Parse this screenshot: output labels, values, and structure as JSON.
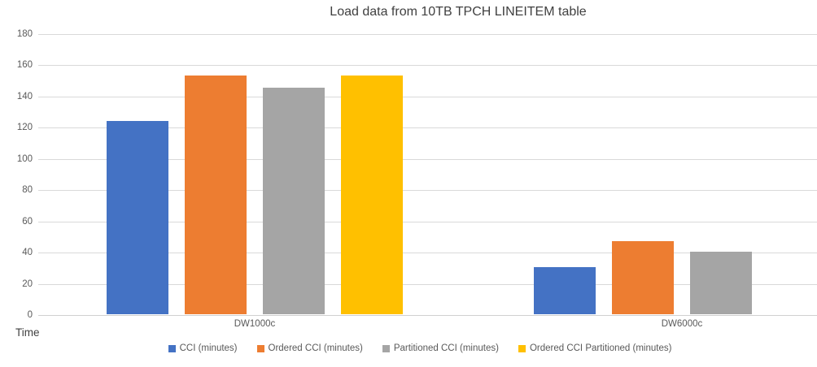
{
  "chart_data": {
    "type": "bar",
    "title": "Load data from 10TB TPCH LINEITEM table",
    "categories": [
      "DW1000c",
      "DW6000c"
    ],
    "series": [
      {
        "name": "CCI (minutes)",
        "color": "#4472c4",
        "values": [
          124,
          30
        ]
      },
      {
        "name": "Ordered CCI (minutes)",
        "color": "#ed7d31",
        "values": [
          153,
          47
        ]
      },
      {
        "name": "Partitioned CCI (minutes)",
        "color": "#a5a5a5",
        "values": [
          145,
          40
        ]
      },
      {
        "name": "Ordered CCI Partitioned (minutes)",
        "color": "#ffc000",
        "values": [
          153,
          null
        ]
      }
    ],
    "ylabel": "Time",
    "ylim": [
      0,
      180
    ],
    "ytick_step": 20,
    "grid": true,
    "legend_position": "bottom",
    "colors": {
      "gridline": "#d9d9d9",
      "axis_text": "#595959",
      "title_text": "#404040"
    }
  }
}
